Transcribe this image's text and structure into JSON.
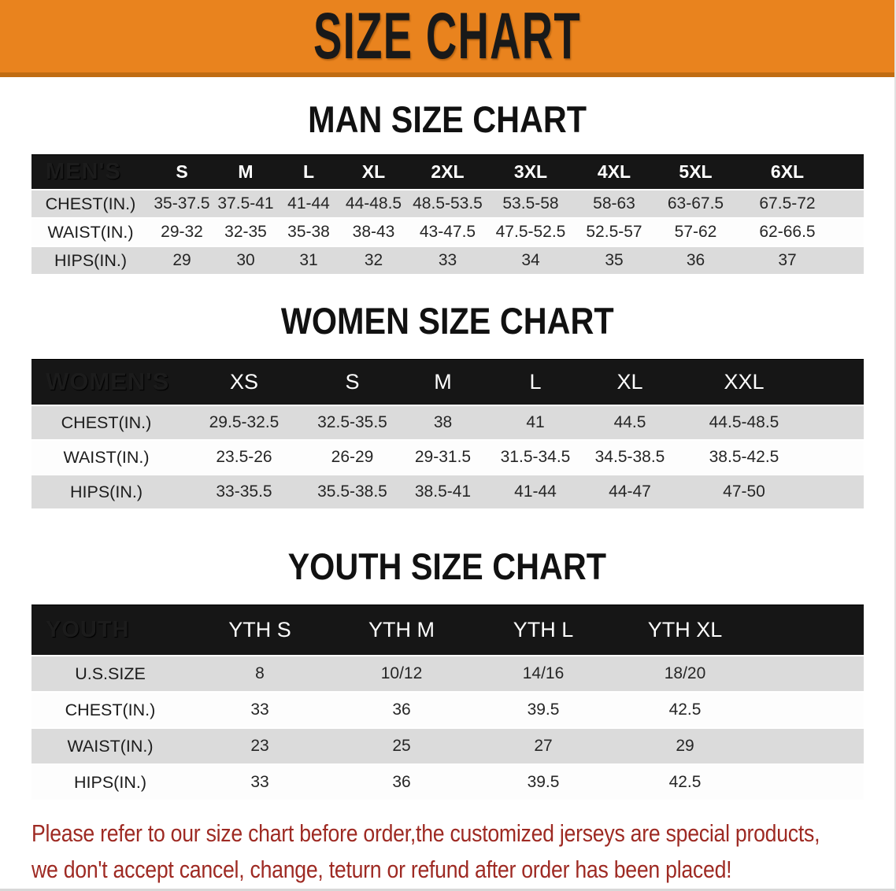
{
  "banner": {
    "title": "SIZE CHART"
  },
  "sections": [
    {
      "title": "MAN SIZE CHART",
      "table": {
        "header_label": "MEN'S",
        "columns": [
          "S",
          "M",
          "L",
          "XL",
          "2XL",
          "3XL",
          "4XL",
          "5XL",
          "6XL"
        ],
        "rows": [
          {
            "label": "CHEST(IN.)",
            "values": [
              "35-37.5",
              "37.5-41",
              "41-44",
              "44-48.5",
              "48.5-53.5",
              "53.5-58",
              "58-63",
              "63-67.5",
              "67.5-72"
            ]
          },
          {
            "label": "WAIST(IN.)",
            "values": [
              "29-32",
              "32-35",
              "35-38",
              "38-43",
              "43-47.5",
              "47.5-52.5",
              "52.5-57",
              "57-62",
              "62-66.5"
            ]
          },
          {
            "label": "HIPS(IN.)",
            "values": [
              "29",
              "30",
              "31",
              "32",
              "33",
              "34",
              "35",
              "36",
              "37"
            ]
          }
        ]
      }
    },
    {
      "title": "WOMEN SIZE CHART",
      "table": {
        "header_label": "WOMEN'S",
        "columns": [
          "XS",
          "S",
          "M",
          "L",
          "XL",
          "XXL"
        ],
        "rows": [
          {
            "label": "CHEST(IN.)",
            "values": [
              "29.5-32.5",
              "32.5-35.5",
              "38",
              "41",
              "44.5",
              "44.5-48.5"
            ]
          },
          {
            "label": "WAIST(IN.)",
            "values": [
              "23.5-26",
              "26-29",
              "29-31.5",
              "31.5-34.5",
              "34.5-38.5",
              "38.5-42.5"
            ]
          },
          {
            "label": "HIPS(IN.)",
            "values": [
              "33-35.5",
              "35.5-38.5",
              "38.5-41",
              "41-44",
              "44-47",
              "47-50"
            ]
          }
        ]
      }
    },
    {
      "title": "YOUTH SIZE CHART",
      "table": {
        "header_label": "YOUTH",
        "columns": [
          "YTH S",
          "YTH M",
          "YTH L",
          "YTH XL"
        ],
        "rows": [
          {
            "label": "U.S.SIZE",
            "values": [
              "8",
              "10/12",
              "14/16",
              "18/20"
            ]
          },
          {
            "label": "CHEST(IN.)",
            "values": [
              "33",
              "36",
              "39.5",
              "42.5"
            ]
          },
          {
            "label": "WAIST(IN.)",
            "values": [
              "23",
              "25",
              "27",
              "29"
            ]
          },
          {
            "label": "HIPS(IN.)",
            "values": [
              "33",
              "36",
              "39.5",
              "42.5"
            ]
          }
        ]
      }
    }
  ],
  "disclaimer": {
    "line1": "Please refer to our size chart before order,the customized jerseys are special products,",
    "line2": "we don't accept cancel, change, teturn or refund after order has been placed!"
  },
  "colors": {
    "banner-bg": "#E9831E",
    "banner-edge": "#C06C12",
    "head-bg": "#161616",
    "row-gray": "#DBDBDB",
    "disclaimer-color": "#9E2A23",
    "page-bg": "#FFFFFF"
  }
}
